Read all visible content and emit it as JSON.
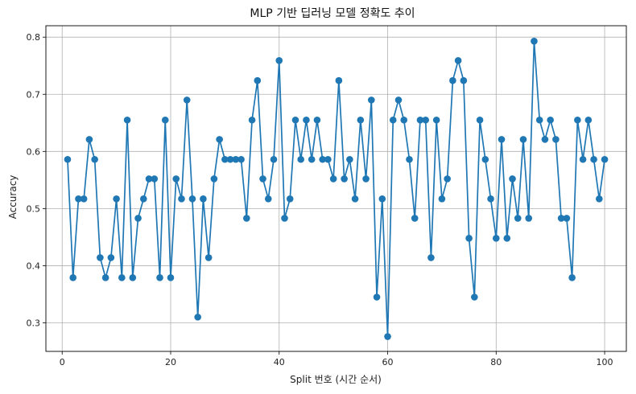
{
  "chart_data": {
    "type": "line",
    "title": "MLP 기반 딥러닝 모델 정확도 추이",
    "xlabel": "Split 번호 (시간 순서)",
    "ylabel": "Accuracy",
    "xlim": [
      -3,
      104
    ],
    "ylim": [
      0.25,
      0.82
    ],
    "xticks": [
      0,
      20,
      40,
      60,
      80,
      100
    ],
    "yticks": [
      0.3,
      0.4,
      0.5,
      0.6,
      0.7,
      0.8
    ],
    "grid": true,
    "line_color": "#1f77b4",
    "marker": "circle",
    "series": [
      {
        "x": [
          1,
          2,
          3,
          4,
          5,
          6,
          7,
          8,
          9,
          10,
          11,
          12,
          13,
          14,
          15,
          16,
          17,
          18,
          19,
          20,
          21,
          22,
          23,
          24,
          25,
          26,
          27,
          28,
          29,
          30,
          31,
          32,
          33,
          34,
          35,
          36,
          37,
          38,
          39,
          40,
          41,
          42,
          43,
          44,
          45,
          46,
          47,
          48,
          49,
          50,
          51,
          52,
          53,
          54,
          55,
          56,
          57,
          58,
          59,
          60,
          61,
          62,
          63,
          64,
          65,
          66,
          67,
          68,
          69,
          70,
          71,
          72,
          73,
          74,
          75,
          76,
          77,
          78,
          79,
          80,
          81,
          82,
          83,
          84,
          85,
          86,
          87,
          88,
          89,
          90,
          91,
          92,
          93,
          94,
          95,
          96,
          97,
          98,
          99,
          100
        ],
        "values": [
          0.586,
          0.379,
          0.517,
          0.517,
          0.621,
          0.586,
          0.414,
          0.379,
          0.414,
          0.517,
          0.379,
          0.655,
          0.379,
          0.483,
          0.517,
          0.552,
          0.552,
          0.379,
          0.655,
          0.379,
          0.552,
          0.517,
          0.69,
          0.517,
          0.31,
          0.517,
          0.414,
          0.552,
          0.621,
          0.586,
          0.586,
          0.586,
          0.586,
          0.483,
          0.655,
          0.724,
          0.552,
          0.517,
          0.586,
          0.759,
          0.483,
          0.517,
          0.655,
          0.586,
          0.655,
          0.586,
          0.655,
          0.586,
          0.586,
          0.552,
          0.724,
          0.552,
          0.586,
          0.517,
          0.655,
          0.552,
          0.69,
          0.345,
          0.517,
          0.276,
          0.655,
          0.69,
          0.655,
          0.586,
          0.483,
          0.655,
          0.655,
          0.414,
          0.655,
          0.517,
          0.552,
          0.724,
          0.759,
          0.724,
          0.448,
          0.345,
          0.655,
          0.586,
          0.517,
          0.448,
          0.621,
          0.448,
          0.552,
          0.483,
          0.621,
          0.483,
          0.793,
          0.655,
          0.621,
          0.655,
          0.621,
          0.483,
          0.483,
          0.379,
          0.655,
          0.586,
          0.655,
          0.586,
          0.517,
          0.586
        ]
      }
    ]
  }
}
